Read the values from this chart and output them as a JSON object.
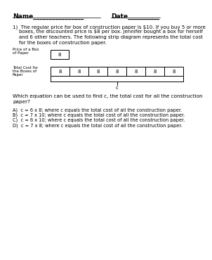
{
  "background_color": "#ffffff",
  "title_name": "Name",
  "name_line": "________________",
  "title_date": "Date",
  "date_line": "__________",
  "problem_text_lines": [
    "1)  The regular price for box of construction paper is $10. If you buy 5 or more",
    "    boxes, the discounted price is $8 per box. Jennifer bought a box for herself",
    "    and 6 other teachers. The following strip diagram represents the total cost",
    "    for the boxes of construction paper."
  ],
  "label1_line1": "Price of a Box",
  "label1_line2": "of Paper",
  "label2_line1": "Total Cost for",
  "label2_line2": "the Boxes of",
  "label2_line3": "Paper",
  "box1_value": "8",
  "strip_values": [
    "8",
    "8",
    "8",
    "8",
    "8",
    "8",
    "8"
  ],
  "bracket_label": "c",
  "question_lines": [
    "Which equation can be used to find c, the total cost for all the construction",
    "paper?"
  ],
  "choices": [
    "A)  c = 6 x 8; where c equals the total cost of all the construction paper.",
    "B)  c = 7 x 10; where c equals the total cost of all the construction paper.",
    "C)  c = 6 x 10; where c equals the total cost of all the construction paper.",
    "D)  c = 7 x 8; where c equals the total cost of all the construction paper."
  ],
  "fs_header": 6.5,
  "fs_body": 5.0,
  "fs_label": 4.0,
  "fs_strip_val": 5.0,
  "fs_question": 5.2,
  "fs_choices": 4.8
}
